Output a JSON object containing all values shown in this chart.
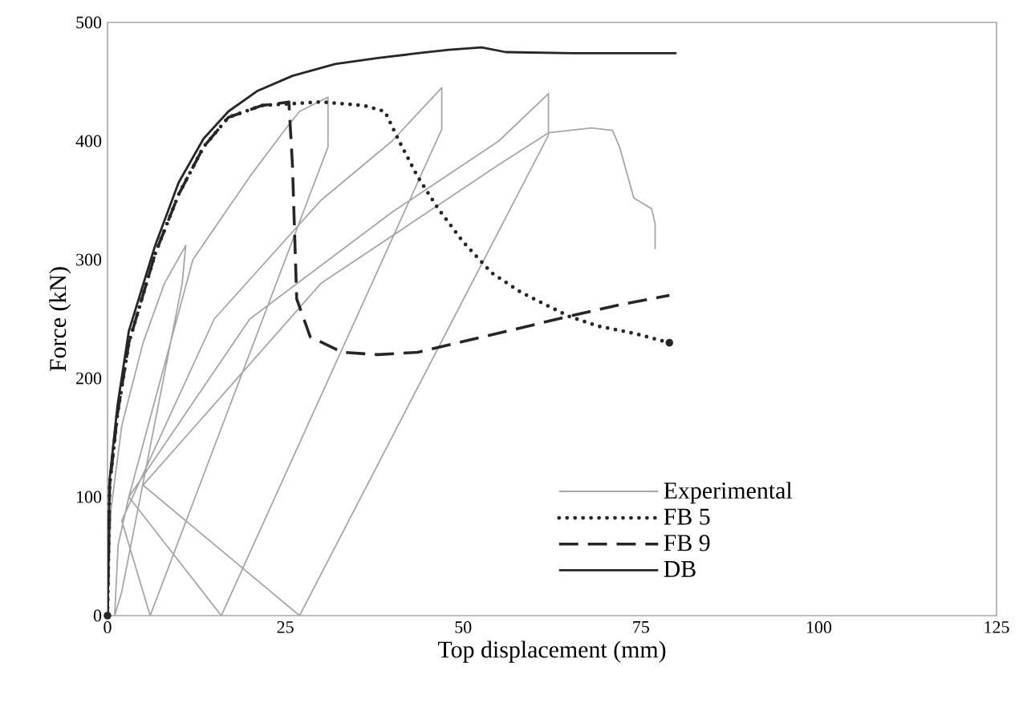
{
  "chart_data": {
    "type": "line",
    "xlabel": "Top displacement (mm)",
    "ylabel": "Force (kN)",
    "xlim": [
      0,
      125
    ],
    "xticks": [
      0,
      25,
      50,
      75,
      100,
      125
    ],
    "ylim": [
      0,
      500
    ],
    "yticks": [
      0,
      100,
      200,
      300,
      400,
      500
    ],
    "grid": false,
    "legend": "bottom right",
    "series": [
      {
        "name": "Experimental",
        "color": "#a6a6a6",
        "line_style": "solid",
        "x": [
          0,
          0.5,
          2,
          5,
          8,
          11,
          10.5,
          2,
          1,
          1.5,
          3,
          12,
          20,
          25,
          27,
          31,
          31,
          6,
          2,
          15,
          30,
          40,
          47,
          47,
          16,
          3,
          20,
          40,
          55,
          62,
          62,
          27,
          5,
          30,
          45,
          55,
          62,
          68,
          71,
          72,
          74,
          76.5,
          77,
          77
        ],
        "values": [
          0,
          90,
          160,
          230,
          280,
          312,
          280,
          20,
          0,
          60,
          100,
          300,
          370,
          410,
          425,
          437,
          395,
          0,
          80,
          250,
          350,
          400,
          445,
          410,
          0,
          100,
          250,
          340,
          400,
          440,
          405,
          0,
          110,
          280,
          340,
          380,
          407,
          411,
          409,
          395,
          352,
          343,
          330,
          309
        ]
      },
      {
        "name": "FB 5",
        "color": "#262626",
        "line_style": "dotted",
        "x": [
          0,
          0.3,
          1.4,
          3,
          6.7,
          10,
          13.5,
          17,
          21.7,
          30,
          36,
          39,
          41,
          43.6,
          46.5,
          50,
          54,
          58,
          61.6,
          65,
          69,
          74,
          79
        ],
        "values": [
          0,
          110,
          170,
          230,
          305,
          355,
          395,
          420,
          430,
          433,
          430,
          425,
          400,
          370,
          343,
          315,
          289,
          273,
          262,
          252,
          244,
          238,
          230
        ]
      },
      {
        "name": "FB 9",
        "color": "#262626",
        "line_style": "dashed",
        "x": [
          0,
          0.3,
          1.4,
          3,
          6.7,
          10,
          13.5,
          17,
          21.7,
          25.5,
          26,
          26.6,
          28.5,
          33,
          38,
          43.6,
          50,
          57,
          65.4,
          72,
          79
        ],
        "values": [
          0,
          110,
          170,
          230,
          305,
          355,
          395,
          420,
          430,
          433,
          380,
          267,
          235,
          222,
          220,
          222,
          231,
          241,
          253,
          262,
          270
        ]
      },
      {
        "name": "DB",
        "color": "#262626",
        "line_style": "solid",
        "x": [
          0,
          0.3,
          1.4,
          3,
          6.7,
          10,
          13.5,
          17,
          21,
          26,
          32,
          38,
          43.6,
          48,
          52.6,
          56,
          65.4,
          80
        ],
        "values": [
          0,
          115,
          177,
          240,
          312,
          365,
          402,
          425,
          442,
          455,
          465,
          470,
          474,
          477,
          479,
          475,
          474,
          474
        ]
      }
    ]
  }
}
